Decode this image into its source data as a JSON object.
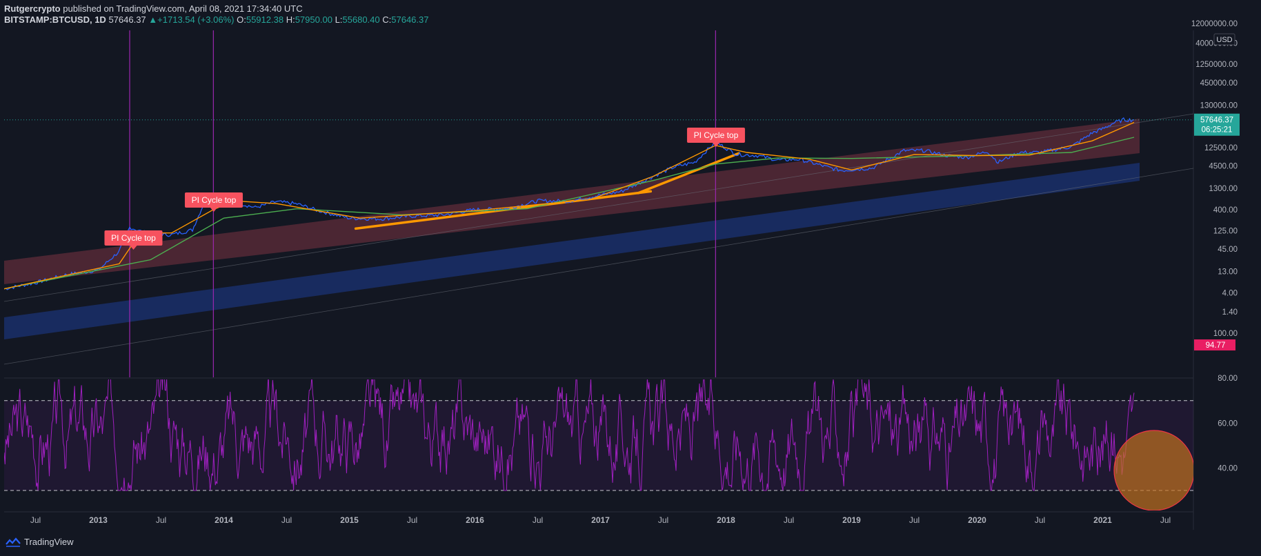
{
  "header": {
    "author": "Rutgercrypto",
    "published_text": "published on TradingView.com, April 08, 2021 17:34:40 UTC",
    "symbol": "BITSTAMP:BTCUSD, 1D",
    "last_price": "57646.37",
    "change_arrow": "▲",
    "change": "+1713.54 (+3.06%)",
    "o_label": "O:",
    "o_value": "55912.38",
    "h_label": "H:",
    "h_value": "57950.00",
    "l_label": "L:",
    "l_value": "55680.40",
    "c_label": "C:",
    "c_value": "57646.37"
  },
  "footer": {
    "brand": "TradingView"
  },
  "colors": {
    "background": "#131722",
    "price": "#2962ff",
    "sma_green": "#4caf50",
    "sma_orange": "#ff9800",
    "red_band": "#e05060",
    "blue_band": "#2962ff",
    "rsi": "#a020c0",
    "label_bg": "#f7525f",
    "last_price_bg": "#26a69a",
    "rsi_level_bg": "#e91e63",
    "pink_line": "#f23645"
  },
  "chart_data": [
    {
      "type": "line",
      "scale": "log",
      "currency": "USD",
      "x_ticks": [
        "Jul",
        "2013",
        "Jul",
        "2014",
        "Jul",
        "2015",
        "Jul",
        "2016",
        "Jul",
        "2017",
        "Jul",
        "2018",
        "Jul",
        "2019",
        "Jul",
        "2020",
        "Jul",
        "2021",
        "Jul"
      ],
      "y_ticks": [
        "12000000.00",
        "4000000.00",
        "1250000.00",
        "450000.00",
        "130000.00",
        "12500.00",
        "4500.00",
        "1300.00",
        "400.00",
        "125.00",
        "45.00",
        "13.00",
        "4.00",
        "1.40"
      ],
      "last_price_label": "57646.37",
      "countdown_label": "06:25:21",
      "annotations": [
        "PI Cycle top",
        "PI Cycle top",
        "PI Cycle top"
      ],
      "annotation_dates": [
        "2013-04",
        "2013-12",
        "2017-12"
      ],
      "series": [
        {
          "role": "price",
          "x": [
            "2012-04",
            "2012-07",
            "2012-10",
            "2013-01",
            "2013-03",
            "2013-04",
            "2013-06",
            "2013-08",
            "2013-10",
            "2013-11",
            "2013-12",
            "2014-02",
            "2014-04",
            "2014-06",
            "2014-08",
            "2014-10",
            "2015-01",
            "2015-04",
            "2015-07",
            "2015-10",
            "2016-01",
            "2016-04",
            "2016-07",
            "2016-10",
            "2017-01",
            "2017-03",
            "2017-06",
            "2017-08",
            "2017-10",
            "2017-12",
            "2018-02",
            "2018-04",
            "2018-06",
            "2018-08",
            "2018-11",
            "2018-12",
            "2019-03",
            "2019-06",
            "2019-08",
            "2019-10",
            "2019-12",
            "2020-02",
            "2020-03",
            "2020-05",
            "2020-07",
            "2020-10",
            "2020-12",
            "2021-01",
            "2021-02",
            "2021-03",
            "2021-04"
          ],
          "y": [
            5,
            7,
            11,
            14,
            40,
            150,
            100,
            100,
            130,
            500,
            800,
            600,
            450,
            620,
            550,
            380,
            250,
            240,
            280,
            300,
            400,
            420,
            650,
            640,
            900,
            1100,
            2500,
            4200,
            5500,
            17000,
            8500,
            8000,
            6200,
            6500,
            4000,
            3500,
            4000,
            10500,
            10500,
            8000,
            7200,
            10000,
            5500,
            9500,
            9500,
            13000,
            28000,
            35000,
            48000,
            58000,
            57646
          ]
        },
        {
          "role": "long-sma",
          "x": [
            "2012-04",
            "2013-06",
            "2014-01",
            "2014-08",
            "2015-06",
            "2016-06",
            "2017-06",
            "2017-12",
            "2018-06",
            "2019-01",
            "2020-01",
            "2020-10",
            "2021-04"
          ],
          "y": [
            5,
            25,
            250,
            420,
            300,
            420,
            2000,
            5000,
            7000,
            6800,
            8000,
            9500,
            22000
          ]
        },
        {
          "role": "short-sma",
          "x": [
            "2012-04",
            "2013-03",
            "2013-05",
            "2013-08",
            "2013-12",
            "2014-02",
            "2014-06",
            "2015-02",
            "2016-01",
            "2016-12",
            "2017-06",
            "2017-12",
            "2018-03",
            "2018-09",
            "2019-01",
            "2019-07",
            "2020-01",
            "2020-06",
            "2020-12",
            "2021-04"
          ],
          "y": [
            5,
            20,
            110,
            110,
            400,
            650,
            560,
            250,
            380,
            700,
            2500,
            14000,
            9500,
            6500,
            3600,
            8500,
            8000,
            8200,
            18000,
            50000
          ]
        }
      ]
    },
    {
      "type": "line",
      "x_ticks": [
        "Jul",
        "2013",
        "Jul",
        "2014",
        "Jul",
        "2015",
        "Jul",
        "2016",
        "Jul",
        "2017",
        "Jul",
        "2018",
        "Jul",
        "2019",
        "Jul",
        "2020",
        "Jul",
        "2021",
        "Jul"
      ],
      "y_ticks": [
        "100.00",
        "80.00",
        "60.00",
        "40.00"
      ],
      "level_label": "94.77",
      "ylim": [
        28,
        102
      ],
      "series": [
        {
          "role": "oscillator",
          "x": [
            "2012-04",
            "2021-04"
          ],
          "y": [
            46,
            52
          ]
        }
      ]
    }
  ]
}
